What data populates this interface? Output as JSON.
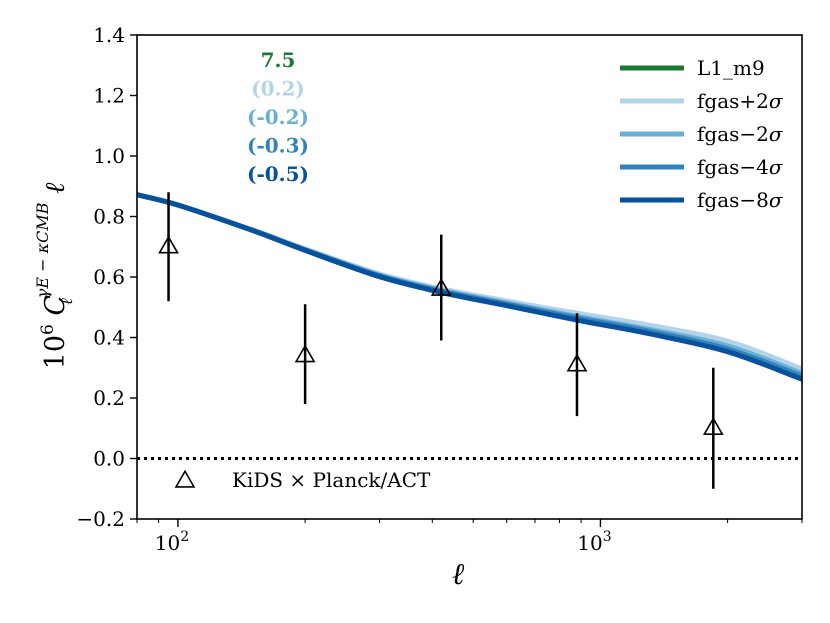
{
  "chart_data": {
    "type": "line",
    "xscale": "log",
    "xlim": [
      80,
      3000
    ],
    "ylim": [
      -0.2,
      1.4
    ],
    "xlabel": "ℓ",
    "ylabel_parts": {
      "prefix": "10",
      "exp": "6",
      "C": "C",
      "sub": "ℓ",
      "sup": "γE − κCMB",
      "suffix": "ℓ"
    },
    "x_ticks": [
      {
        "value": 100,
        "base": "10",
        "exp": "2"
      },
      {
        "value": 1000,
        "base": "10",
        "exp": "3"
      }
    ],
    "y_ticks": [
      "−0.2",
      "0.0",
      "0.2",
      "0.4",
      "0.6",
      "0.8",
      "1.0",
      "1.2",
      "1.4"
    ],
    "y_tick_values": [
      -0.2,
      0.0,
      0.2,
      0.4,
      0.6,
      0.8,
      1.0,
      1.2,
      1.4
    ],
    "zero_line": {
      "y": 0,
      "style": "dotted",
      "color": "#000000"
    },
    "series": [
      {
        "name": "L1_m9",
        "color": "#1a7a33",
        "x": [
          80,
          100,
          150,
          200,
          300,
          420,
          600,
          900,
          1300,
          2000,
          3000
        ],
        "y": [
          0.872,
          0.838,
          0.755,
          0.69,
          0.604,
          0.553,
          0.51,
          0.461,
          0.419,
          0.36,
          0.269
        ]
      },
      {
        "name": "fgas+2σ",
        "color": "#b3d3e8",
        "x": [
          80,
          100,
          150,
          200,
          300,
          420,
          600,
          900,
          1300,
          2000,
          3000
        ],
        "y": [
          0.872,
          0.838,
          0.756,
          0.693,
          0.61,
          0.561,
          0.521,
          0.478,
          0.441,
          0.388,
          0.296
        ]
      },
      {
        "name": "fgas−2σ",
        "color": "#6aaed6",
        "x": [
          80,
          100,
          150,
          200,
          300,
          420,
          600,
          900,
          1300,
          2000,
          3000
        ],
        "y": [
          0.872,
          0.838,
          0.755,
          0.691,
          0.606,
          0.556,
          0.514,
          0.467,
          0.427,
          0.372,
          0.281
        ]
      },
      {
        "name": "fgas−4σ",
        "color": "#3182bd",
        "x": [
          80,
          100,
          150,
          200,
          300,
          420,
          600,
          900,
          1300,
          2000,
          3000
        ],
        "y": [
          0.872,
          0.838,
          0.755,
          0.69,
          0.604,
          0.553,
          0.51,
          0.462,
          0.421,
          0.362,
          0.272
        ]
      },
      {
        "name": "fgas−8σ",
        "color": "#08519c",
        "x": [
          80,
          100,
          150,
          200,
          300,
          420,
          600,
          900,
          1300,
          2000,
          3000
        ],
        "y": [
          0.872,
          0.838,
          0.754,
          0.688,
          0.601,
          0.549,
          0.505,
          0.455,
          0.413,
          0.353,
          0.262
        ]
      }
    ],
    "data_points": {
      "label": "KiDS × Planck/ACT",
      "marker": "open-triangle",
      "color": "#000000",
      "points": [
        {
          "x": 95,
          "y": 0.7,
          "err_low": 0.18,
          "err_high": 0.18
        },
        {
          "x": 200,
          "y": 0.34,
          "err_low": 0.16,
          "err_high": 0.17
        },
        {
          "x": 420,
          "y": 0.56,
          "err_low": 0.17,
          "err_high": 0.18
        },
        {
          "x": 880,
          "y": 0.31,
          "err_low": 0.17,
          "err_high": 0.17
        },
        {
          "x": 1850,
          "y": 0.1,
          "err_low": 0.2,
          "err_high": 0.2
        }
      ]
    },
    "chi2_annotations": [
      {
        "text": "7.5",
        "color": "#1a7a33"
      },
      {
        "text": "(0.2)",
        "color": "#b3d3e8"
      },
      {
        "text": "(-0.2)",
        "color": "#6aaed6"
      },
      {
        "text": "(-0.3)",
        "color": "#3182bd"
      },
      {
        "text": "(-0.5)",
        "color": "#08519c"
      }
    ],
    "legend": {
      "placement": "top-right",
      "entries": [
        {
          "prefix": "L1_m9",
          "sigma": "",
          "color": "#1a7a33"
        },
        {
          "prefix": "fgas+2",
          "sigma": "σ",
          "color": "#b3d3e8"
        },
        {
          "prefix": "fgas−2",
          "sigma": "σ",
          "color": "#6aaed6"
        },
        {
          "prefix": "fgas−4",
          "sigma": "σ",
          "color": "#3182bd"
        },
        {
          "prefix": "fgas−8",
          "sigma": "σ",
          "color": "#08519c"
        }
      ]
    },
    "grid": false
  }
}
